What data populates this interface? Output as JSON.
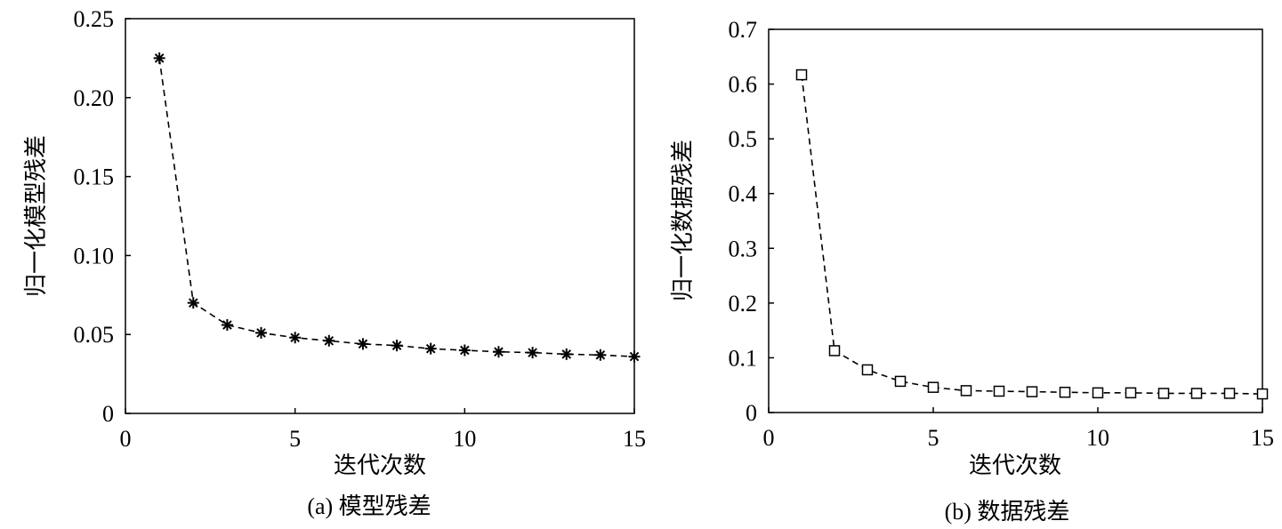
{
  "chart_data": [
    {
      "type": "line",
      "caption": "(a) 模型残差",
      "xlabel": "迭代次数",
      "ylabel": "归一化模型残差",
      "xlim": [
        0,
        15
      ],
      "ylim": [
        0,
        0.25
      ],
      "xticks": [
        0,
        5,
        10,
        15
      ],
      "xtick_labels": [
        "0",
        "5",
        "10",
        "15"
      ],
      "yticks": [
        0,
        0.05,
        0.1,
        0.15,
        0.2,
        0.25
      ],
      "ytick_labels": [
        "0",
        "0.05",
        "0.10",
        "0.15",
        "0.20",
        "0.25"
      ],
      "grid": false,
      "line_style": "dashed",
      "marker": "asterisk",
      "series": [
        {
          "x": [
            1,
            2,
            3,
            4,
            5,
            6,
            7,
            8,
            9,
            10,
            11,
            12,
            13,
            14,
            15
          ],
          "values": [
            0.225,
            0.07,
            0.056,
            0.051,
            0.048,
            0.046,
            0.044,
            0.043,
            0.041,
            0.04,
            0.039,
            0.0385,
            0.0375,
            0.037,
            0.036
          ]
        }
      ]
    },
    {
      "type": "line",
      "caption": "(b) 数据残差",
      "xlabel": "迭代次数",
      "ylabel": "归一化数据残差",
      "xlim": [
        0,
        15
      ],
      "ylim": [
        0,
        0.7
      ],
      "xticks": [
        0,
        5,
        10,
        15
      ],
      "xtick_labels": [
        "0",
        "5",
        "10",
        "15"
      ],
      "yticks": [
        0,
        0.1,
        0.2,
        0.3,
        0.4,
        0.5,
        0.6,
        0.7
      ],
      "ytick_labels": [
        "0",
        "0.1",
        "0.2",
        "0.3",
        "0.4",
        "0.5",
        "0.6",
        "0.7"
      ],
      "grid": false,
      "line_style": "dashed",
      "marker": "square",
      "series": [
        {
          "x": [
            1,
            2,
            3,
            4,
            5,
            6,
            7,
            8,
            9,
            10,
            11,
            12,
            13,
            14,
            15
          ],
          "values": [
            0.617,
            0.113,
            0.078,
            0.057,
            0.046,
            0.04,
            0.039,
            0.038,
            0.037,
            0.036,
            0.036,
            0.035,
            0.035,
            0.035,
            0.034
          ]
        }
      ]
    }
  ]
}
